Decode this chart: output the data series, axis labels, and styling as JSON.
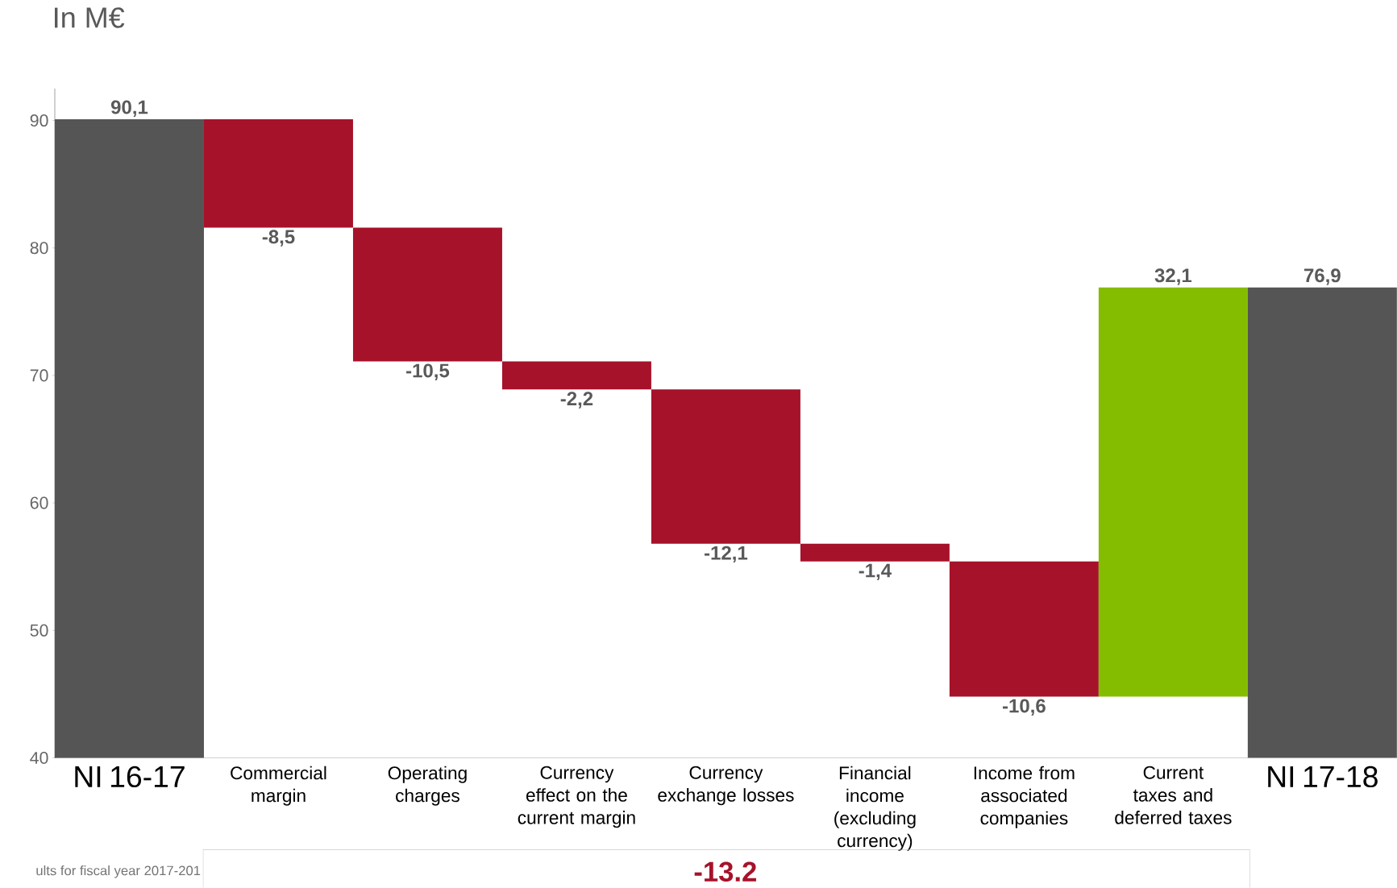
{
  "chart_data": {
    "type": "bar",
    "title": "In M€",
    "categories": [
      "NI 16-17",
      "Commercial margin",
      "Operating charges",
      "Currency effect on the current margin",
      "Currency exchange losses",
      "Financial income (excluding currency)",
      "Income from associated companies",
      "Current taxes and deferred taxes",
      "NI 17-18"
    ],
    "values": [
      90.1,
      -8.5,
      -10.5,
      -2.2,
      -12.1,
      -1.4,
      -10.6,
      32.1,
      76.9
    ],
    "base": [
      null,
      90.1,
      81.6,
      71.1,
      68.9,
      56.8,
      55.4,
      44.8,
      null
    ],
    "colors": [
      "#555555",
      "#a6122a",
      "#a6122a",
      "#a6122a",
      "#a6122a",
      "#a6122a",
      "#a6122a",
      "#84bd00",
      "#555555"
    ],
    "value_labels": [
      "90,1",
      "-8,5",
      "-10,5",
      "-2,2",
      "-12,1",
      "-1,4",
      "-10,6",
      "32,1",
      "76,9"
    ],
    "ylim": [
      40,
      92.5
    ],
    "yticks": [
      40,
      50,
      60,
      70,
      80,
      90
    ],
    "annotations": [
      "ults for fiscal year 2017-201",
      "-13.2"
    ]
  }
}
